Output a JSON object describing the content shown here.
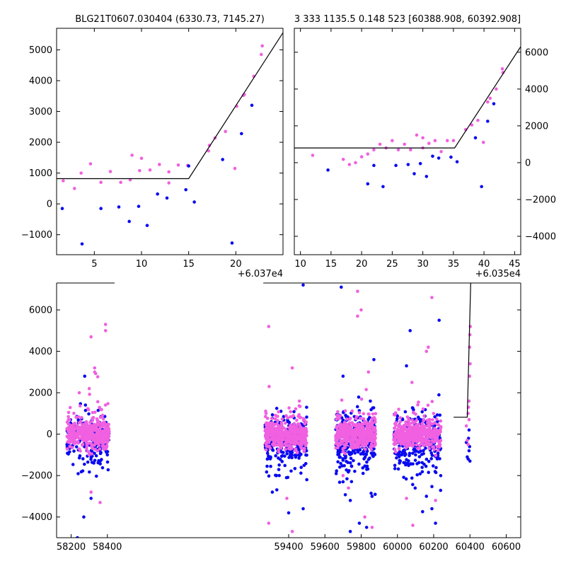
{
  "titles": {
    "left": "BLG21T0607.030404 (6330.73, 7145.27)",
    "right": "3 333 1135.5 0.148 523 [60388.908, 60392.908]"
  },
  "colors": {
    "series_a": "#0a0af0",
    "series_b": "#f060e0",
    "model": "#000000"
  },
  "chart_data": [
    {
      "id": "zoom-left",
      "type": "scatter",
      "title": "BLG21T0607.030404 (6330.73, 7145.27)",
      "xlabel": "",
      "ylabel": "",
      "x_offset_label": "+6.037e4",
      "xlim": [
        1,
        25
      ],
      "ylim": [
        -1650,
        5700
      ],
      "xticks": [
        5,
        10,
        15,
        20
      ],
      "yticks": [
        -1000,
        0,
        1000,
        2000,
        3000,
        4000,
        5000
      ],
      "yaxis_side": "left",
      "grid": false,
      "series": [
        {
          "color": "#f060e0",
          "points": [
            [
              1.7,
              750
            ],
            [
              2.9,
              500
            ],
            [
              3.6,
              1000
            ],
            [
              4.6,
              1300
            ],
            [
              5.7,
              700
            ],
            [
              6.7,
              1050
            ],
            [
              7.8,
              700
            ],
            [
              8.8,
              780
            ],
            [
              9,
              1580
            ],
            [
              9.8,
              1080
            ],
            [
              10,
              1480
            ],
            [
              10.9,
              1100
            ],
            [
              11.9,
              1280
            ],
            [
              12.9,
              680
            ],
            [
              12.9,
              1040
            ],
            [
              13.9,
              1260
            ],
            [
              14.9,
              1250
            ],
            [
              17.1,
              1720
            ],
            [
              17.2,
              1900
            ],
            [
              17.8,
              2140
            ],
            [
              18.9,
              2350
            ],
            [
              19.9,
              1150
            ],
            [
              20.1,
              3170
            ],
            [
              20.8,
              3520
            ],
            [
              20.9,
              3550
            ],
            [
              21.9,
              4140
            ],
            [
              22.7,
              4850
            ],
            [
              22.8,
              5130
            ]
          ]
        },
        {
          "color": "#0a0af0",
          "points": [
            [
              1.6,
              -150
            ],
            [
              3.7,
              -1300
            ],
            [
              5.7,
              -150
            ],
            [
              7.6,
              -100
            ],
            [
              8.7,
              -570
            ],
            [
              9.7,
              -80
            ],
            [
              10.6,
              -700
            ],
            [
              11.7,
              320
            ],
            [
              12.7,
              190
            ],
            [
              14.7,
              460
            ],
            [
              15,
              1230
            ],
            [
              15.6,
              60
            ],
            [
              18.6,
              1440
            ],
            [
              19.6,
              -1270
            ],
            [
              20.6,
              2280
            ],
            [
              21.7,
              3200
            ]
          ]
        }
      ],
      "model": [
        [
          1,
          820
        ],
        [
          15,
          820
        ],
        [
          25.3,
          5700
        ]
      ]
    },
    {
      "id": "zoom-right",
      "type": "scatter",
      "title": "3 333 1135.5 0.148 523 [60388.908, 60392.908]",
      "xlabel": "",
      "ylabel": "",
      "x_offset_label": "+6.035e4",
      "xlim": [
        9,
        46
      ],
      "ylim": [
        -5000,
        7300
      ],
      "xticks": [
        10,
        15,
        20,
        25,
        30,
        35,
        40,
        45
      ],
      "yticks": [
        -4000,
        -2000,
        0,
        2000,
        4000,
        6000
      ],
      "yaxis_side": "right",
      "grid": false,
      "series": [
        {
          "color": "#f060e0",
          "points": [
            [
              12,
              400
            ],
            [
              17,
              180
            ],
            [
              18,
              -100
            ],
            [
              19,
              0
            ],
            [
              20,
              320
            ],
            [
              21,
              470
            ],
            [
              22,
              700
            ],
            [
              23,
              1000
            ],
            [
              24,
              800
            ],
            [
              25,
              1200
            ],
            [
              26,
              700
            ],
            [
              27,
              1000
            ],
            [
              28,
              700
            ],
            [
              29,
              1500
            ],
            [
              30,
              1350
            ],
            [
              30,
              800
            ],
            [
              31,
              1050
            ],
            [
              32,
              1200
            ],
            [
              33,
              600
            ],
            [
              34,
              1200
            ],
            [
              35,
              1200
            ],
            [
              37,
              1800
            ],
            [
              38,
              2050
            ],
            [
              39,
              2300
            ],
            [
              39.9,
              1100
            ],
            [
              40.6,
              3300
            ],
            [
              41,
              3500
            ],
            [
              42,
              4000
            ],
            [
              43,
              5100
            ],
            [
              43.1,
              4900
            ]
          ]
        },
        {
          "color": "#0a0af0",
          "points": [
            [
              14.5,
              -400
            ],
            [
              21,
              -1150
            ],
            [
              22,
              -150
            ],
            [
              23.5,
              -1300
            ],
            [
              25.6,
              -150
            ],
            [
              27.6,
              -100
            ],
            [
              28.6,
              -600
            ],
            [
              29.6,
              -50
            ],
            [
              30.6,
              -750
            ],
            [
              31.6,
              350
            ],
            [
              32.6,
              250
            ],
            [
              34.6,
              300
            ],
            [
              35.6,
              50
            ],
            [
              38.6,
              1350
            ],
            [
              39.6,
              -1300
            ],
            [
              40.6,
              2250
            ],
            [
              41.6,
              3200
            ]
          ]
        }
      ],
      "model": [
        [
          9,
          800
        ],
        [
          35.2,
          800
        ],
        [
          46,
          6300
        ]
      ]
    },
    {
      "id": "full-lightcurve",
      "type": "scatter",
      "title": "",
      "xlabel": "",
      "ylabel": "",
      "xlim": [
        58120,
        60680
      ],
      "ylim": [
        -5000,
        7300
      ],
      "xticks": [
        58200,
        58400,
        59400,
        59600,
        59800,
        60000,
        60200,
        60400,
        60600
      ],
      "yticks": [
        -4000,
        -2000,
        0,
        2000,
        4000,
        6000
      ],
      "yaxis_side": "left",
      "grid": false,
      "axis_break": [
        58440,
        59260
      ],
      "clusters": [
        {
          "range": [
            58175,
            58410
          ],
          "n_a": 160,
          "n_b": 420
        },
        {
          "range": [
            59270,
            59500
          ],
          "n_a": 260,
          "n_b": 430
        },
        {
          "range": [
            59660,
            59880
          ],
          "n_a": 320,
          "n_b": 420
        },
        {
          "range": [
            59980,
            60240
          ],
          "n_a": 280,
          "n_b": 440
        }
      ],
      "outliers_b": [
        [
          58310,
          4700
        ],
        [
          58330,
          3200
        ],
        [
          58330,
          3000
        ],
        [
          58390,
          5300
        ],
        [
          58390,
          5000
        ],
        [
          58245,
          2000
        ],
        [
          58300,
          2200
        ],
        [
          58310,
          -2800
        ],
        [
          58360,
          -3300
        ],
        [
          59290,
          5200
        ],
        [
          59420,
          3200
        ],
        [
          59420,
          -4700
        ],
        [
          59290,
          -4300
        ],
        [
          59390,
          -3100
        ],
        [
          59730,
          -2600
        ],
        [
          59780,
          6900
        ],
        [
          59780,
          5700
        ],
        [
          59800,
          6000
        ],
        [
          59840,
          3000
        ],
        [
          59820,
          -4000
        ],
        [
          59860,
          -4500
        ],
        [
          59700,
          -2000
        ],
        [
          60050,
          -3100
        ],
        [
          60085,
          -4400
        ],
        [
          60190,
          6600
        ],
        [
          60170,
          4200
        ],
        [
          60160,
          4000
        ],
        [
          60080,
          2500
        ],
        [
          60210,
          -3200
        ]
      ],
      "outliers_a": [
        [
          58275,
          2800
        ],
        [
          58310,
          -3100
        ],
        [
          58270,
          -4000
        ],
        [
          58235,
          -5000
        ],
        [
          58400,
          -1000
        ],
        [
          59480,
          7200
        ],
        [
          59310,
          -2800
        ],
        [
          59400,
          -3800
        ],
        [
          59480,
          -3600
        ],
        [
          59500,
          -2200
        ],
        [
          59690,
          7100
        ],
        [
          59700,
          2800
        ],
        [
          59700,
          -2300
        ],
        [
          59740,
          -3200
        ],
        [
          59790,
          -4300
        ],
        [
          59830,
          -4500
        ],
        [
          59860,
          -3000
        ],
        [
          59870,
          3600
        ],
        [
          59740,
          -4700
        ],
        [
          60070,
          5000
        ],
        [
          60050,
          3300
        ],
        [
          60100,
          -1000
        ],
        [
          60230,
          5500
        ],
        [
          60190,
          -3600
        ],
        [
          60210,
          -4300
        ],
        [
          60160,
          -3000
        ]
      ],
      "late": {
        "b": [
          [
            60380,
            400
          ],
          [
            60385,
            -300
          ],
          [
            60390,
            -500
          ],
          [
            60392,
            1300
          ],
          [
            60395,
            1600
          ],
          [
            60398,
            4200
          ],
          [
            60400,
            4800
          ],
          [
            60402,
            5200
          ],
          [
            60398,
            2800
          ],
          [
            60401,
            3400
          ],
          [
            60395,
            700
          ],
          [
            60390,
            1000
          ]
        ],
        "a": [
          [
            60380,
            -400
          ],
          [
            60385,
            -1100
          ],
          [
            60390,
            -1200
          ],
          [
            60392,
            -200
          ],
          [
            60395,
            -800
          ],
          [
            60400,
            -1300
          ],
          [
            60395,
            200
          ],
          [
            60398,
            -600
          ]
        ]
      },
      "model": [
        [
          60310,
          820
        ],
        [
          60385,
          820
        ],
        [
          60404,
          7300
        ]
      ]
    }
  ]
}
